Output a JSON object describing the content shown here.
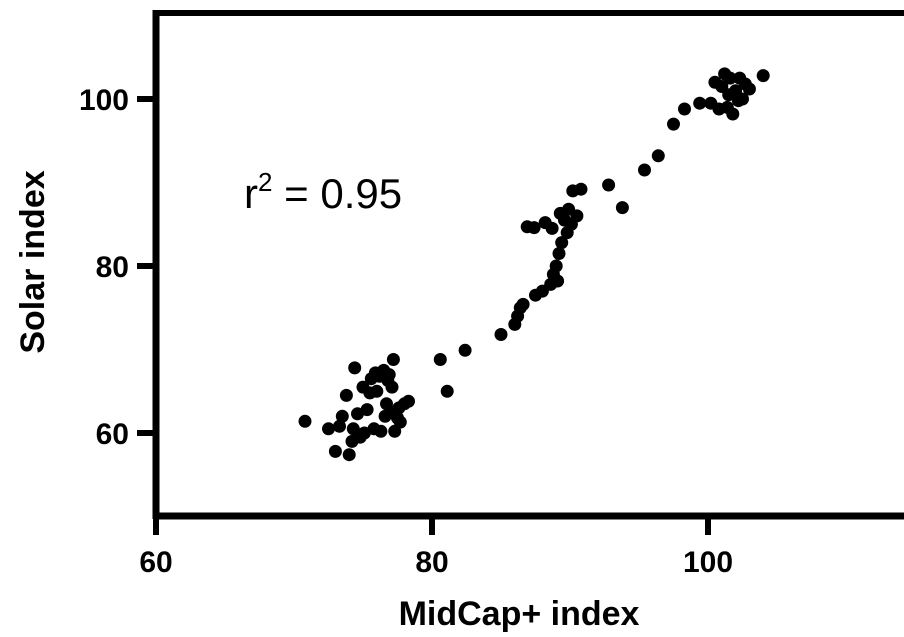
{
  "chart_data": {
    "type": "scatter",
    "xlabel": "MidCap+ index",
    "ylabel": "Solar index",
    "xlim": [
      60,
      116
    ],
    "ylim": [
      51,
      111
    ],
    "xticks": [
      60,
      80,
      100
    ],
    "yticks": [
      60,
      80,
      100
    ],
    "grid": false,
    "annotation": {
      "base": "r",
      "sup": "2",
      "rest": " = 0.95"
    },
    "point_color": "#000000",
    "points": [
      [
        70.8,
        61.4
      ],
      [
        72.5,
        60.5
      ],
      [
        73.0,
        57.8
      ],
      [
        73.3,
        60.8
      ],
      [
        73.5,
        62.0
      ],
      [
        73.8,
        64.5
      ],
      [
        74.0,
        57.4
      ],
      [
        74.2,
        59.0
      ],
      [
        74.3,
        60.5
      ],
      [
        74.4,
        67.8
      ],
      [
        74.6,
        62.3
      ],
      [
        74.8,
        59.5
      ],
      [
        75.0,
        65.5
      ],
      [
        75.1,
        60.0
      ],
      [
        75.3,
        62.8
      ],
      [
        75.5,
        64.8
      ],
      [
        75.6,
        66.5
      ],
      [
        75.8,
        60.5
      ],
      [
        75.9,
        67.2
      ],
      [
        76.0,
        65.0
      ],
      [
        76.2,
        66.8
      ],
      [
        76.3,
        60.2
      ],
      [
        76.5,
        67.5
      ],
      [
        76.6,
        62.0
      ],
      [
        76.7,
        63.5
      ],
      [
        76.8,
        66.3
      ],
      [
        76.9,
        67.0
      ],
      [
        77.0,
        62.5
      ],
      [
        77.1,
        65.5
      ],
      [
        77.2,
        68.8
      ],
      [
        77.3,
        60.2
      ],
      [
        77.5,
        61.8
      ],
      [
        77.6,
        63.0
      ],
      [
        77.7,
        61.3
      ],
      [
        78.0,
        63.5
      ],
      [
        78.3,
        63.8
      ],
      [
        80.6,
        68.8
      ],
      [
        81.1,
        65.0
      ],
      [
        82.4,
        69.9
      ],
      [
        85.0,
        71.8
      ],
      [
        86.0,
        73.0
      ],
      [
        86.2,
        74.0
      ],
      [
        86.4,
        75.0
      ],
      [
        86.6,
        75.4
      ],
      [
        86.9,
        84.7
      ],
      [
        87.4,
        84.6
      ],
      [
        87.5,
        76.5
      ],
      [
        88.0,
        77.0
      ],
      [
        88.2,
        85.2
      ],
      [
        88.6,
        77.8
      ],
      [
        88.7,
        84.5
      ],
      [
        88.8,
        79.0
      ],
      [
        89.0,
        80.0
      ],
      [
        89.1,
        78.2
      ],
      [
        89.2,
        81.5
      ],
      [
        89.3,
        86.3
      ],
      [
        89.4,
        82.8
      ],
      [
        89.6,
        85.5
      ],
      [
        89.8,
        84.0
      ],
      [
        89.9,
        86.8
      ],
      [
        90.1,
        85.0
      ],
      [
        90.2,
        89.0
      ],
      [
        90.5,
        86.0
      ],
      [
        90.8,
        89.2
      ],
      [
        92.8,
        89.7
      ],
      [
        93.8,
        87.0
      ],
      [
        95.4,
        91.5
      ],
      [
        96.4,
        93.2
      ],
      [
        97.5,
        97.0
      ],
      [
        98.3,
        98.8
      ],
      [
        99.4,
        99.5
      ],
      [
        100.2,
        99.5
      ],
      [
        100.5,
        102.0
      ],
      [
        100.8,
        98.8
      ],
      [
        101.0,
        101.5
      ],
      [
        101.2,
        103.0
      ],
      [
        101.4,
        99.0
      ],
      [
        101.5,
        100.5
      ],
      [
        101.6,
        102.5
      ],
      [
        101.8,
        98.2
      ],
      [
        102.0,
        101.0
      ],
      [
        102.2,
        99.8
      ],
      [
        102.3,
        102.5
      ],
      [
        102.5,
        100.0
      ],
      [
        102.7,
        101.8
      ],
      [
        103.0,
        101.2
      ],
      [
        104.0,
        102.8
      ]
    ]
  }
}
